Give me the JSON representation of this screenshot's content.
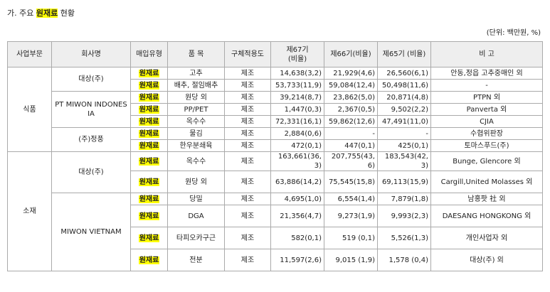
{
  "section_title_prefix": "가. 주요 ",
  "section_title_highlight": "원재료",
  "section_title_suffix": " 현황",
  "unit_note": "(단위: 백만원, %)",
  "headers": [
    "사업부문",
    "회사명",
    "매입유형",
    "품 목",
    "구체적용도",
    "제67기\n(비율)",
    "제66기(비율)",
    "제65기 (비율)",
    "비 고"
  ],
  "rows": [
    {
      "division": "식품",
      "company": "대상(주)",
      "type": "원재료",
      "item": "고추",
      "use": "제조",
      "p67": "14,638(3,2)",
      "p66": "21,929(4,6)",
      "p65": "26,560(6,1)",
      "note": "안동,정읍 고추중매인 외"
    },
    {
      "type": "원재료",
      "item": "배추, 절임배추",
      "use": "제조",
      "p67": "53,733(11,9)",
      "p66": "59,084(12,4)",
      "p65": "50,498(11,6)",
      "note": "-"
    },
    {
      "company": "PT MIWON INDONESIA",
      "type": "원재료",
      "item": "원당 외",
      "use": "제조",
      "p67": "39,214(8,7)",
      "p66": "23,862(5,0)",
      "p65": "20,871(4,8)",
      "note": "PTPN 외"
    },
    {
      "type": "원재료",
      "item": "PP/PET",
      "use": "제조",
      "p67": "1,447(0,3)",
      "p66": "2,367(0,5)",
      "p65": "9,502(2,2)",
      "note": "Panverta 외"
    },
    {
      "type": "원재료",
      "item": "옥수수",
      "use": "제조",
      "p67": "72,331(16,1)",
      "p66": "59,862(12,6)",
      "p65": "47,491(11,0)",
      "note": "CJIA"
    },
    {
      "company": "(주)정풍",
      "type": "원재료",
      "item": "물김",
      "use": "제조",
      "p67": "2,884(0,6)",
      "p66": "-",
      "p65": "-",
      "note": "수협위판장"
    },
    {
      "type": "원재료",
      "item": "한우분쇄육",
      "use": "제조",
      "p67": "472(0,1)",
      "p66": "447(0,1)",
      "p65": "425(0,1)",
      "note": "토마스푸드(주)"
    },
    {
      "division": "소재",
      "company": "대상(주)",
      "type": "원재료",
      "item": "옥수수",
      "use": "제조",
      "p67": "163,661(36,3)",
      "p66": "207,755(43,6)",
      "p65": "183,543(42,3)",
      "note": "Bunge, Glencore 외"
    },
    {
      "type": "원재료",
      "item": "원당 외",
      "use": "제조",
      "p67": "63,886(14,2)",
      "p66": "75,545(15,8)",
      "p65": "69,113(15,9)",
      "note": "Cargill,United Molasses 외"
    },
    {
      "company": "MIWON VIETNAM",
      "type": "원재료",
      "item": "당밀",
      "use": "제조",
      "p67": "4,695(1,0)",
      "p66": "6,554(1,4)",
      "p65": "7,879(1,8)",
      "note": "남홍팟 社 외"
    },
    {
      "type": "원재료",
      "item": "DGA",
      "use": "제조",
      "p67": "21,356(4,7)",
      "p66": "9,273(1,9)",
      "p65": "9,993(2,3)",
      "note": "DAESANG HONGKONG 외"
    },
    {
      "type": "원재료",
      "item": "타피오카구근",
      "use": "제조",
      "p67": "582(0,1)",
      "p66": "519 (0,1)",
      "p65": "5,526(1,3)",
      "note": "개인사업자 외"
    },
    {
      "type": "원재료",
      "item": "전분",
      "use": "제조",
      "p67": "11,597(2,6)",
      "p66": "9,015 (1,9)",
      "p65": "1,578 (0,4)",
      "note": "대상(주) 외"
    }
  ]
}
